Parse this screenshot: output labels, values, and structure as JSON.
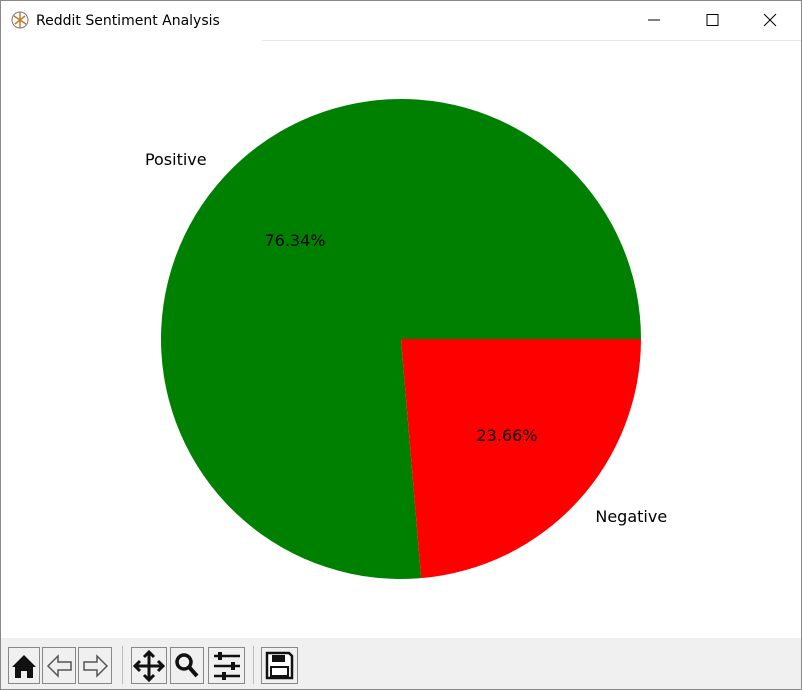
{
  "window": {
    "title": "Reddit Sentiment Analysis"
  },
  "chart_data": {
    "type": "pie",
    "categories": [
      "Positive",
      "Negative"
    ],
    "values": [
      76.34,
      23.66
    ],
    "value_labels": [
      "76.34%",
      "23.66%"
    ],
    "colors": [
      "green",
      "red"
    ],
    "start_angle": 0,
    "direction": "counterclockwise"
  }
}
